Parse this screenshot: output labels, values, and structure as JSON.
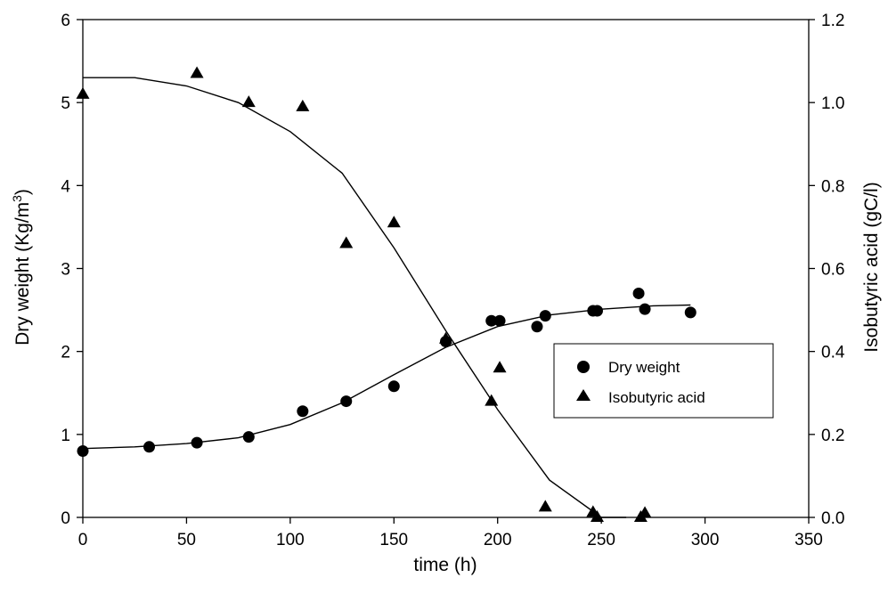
{
  "chart_data": {
    "type": "scatter",
    "title": "",
    "xlabel": "time (h)",
    "ylabel": "Dry weight (Kg/m",
    "ylabel_superscript": "3",
    "ylabel_suffix": ")",
    "y2label": "Isobutyric acid (gC/l)",
    "xlim": [
      0,
      350
    ],
    "ylim": [
      0,
      6
    ],
    "y2lim": [
      0,
      1.2
    ],
    "x_ticks": [
      "0",
      "50",
      "100",
      "150",
      "200",
      "250",
      "300",
      "350"
    ],
    "y_ticks": [
      "0",
      "1",
      "2",
      "3",
      "4",
      "5",
      "6"
    ],
    "y2_ticks": [
      "0.0",
      "0.2",
      "0.4",
      "0.6",
      "0.8",
      "1.0",
      "1.2"
    ],
    "grid": false,
    "legend_position": "center-right",
    "series": [
      {
        "name": "Dry weight",
        "axis": "left",
        "marker": "circle",
        "x": [
          0,
          32,
          55,
          80,
          106,
          127,
          150,
          175,
          197,
          201,
          219,
          223,
          246,
          248,
          268,
          271,
          293
        ],
        "y": [
          0.8,
          0.85,
          0.9,
          0.97,
          1.28,
          1.4,
          1.58,
          2.12,
          2.37,
          2.37,
          2.3,
          2.43,
          2.49,
          2.49,
          2.7,
          2.51,
          2.47
        ]
      },
      {
        "name": "Isobutyric acid",
        "axis": "right",
        "marker": "triangle",
        "x": [
          0,
          55,
          80,
          106,
          127,
          150,
          175,
          197,
          201,
          223,
          246,
          248,
          269,
          271
        ],
        "y": [
          1.02,
          1.07,
          1.0,
          0.99,
          0.66,
          0.71,
          0.43,
          0.28,
          0.36,
          0.025,
          0.012,
          0.0,
          0.0,
          0.01
        ]
      }
    ],
    "fits": [
      {
        "axis": "left",
        "x": [
          0,
          25,
          50,
          75,
          100,
          125,
          150,
          175,
          200,
          225,
          250,
          275,
          293
        ],
        "y": [
          0.83,
          0.85,
          0.89,
          0.96,
          1.12,
          1.38,
          1.72,
          2.05,
          2.3,
          2.44,
          2.51,
          2.55,
          2.56
        ]
      },
      {
        "axis": "right",
        "x": [
          0,
          25,
          50,
          75,
          100,
          125,
          150,
          175,
          200,
          225,
          250,
          262
        ],
        "y": [
          1.06,
          1.06,
          1.04,
          1.0,
          0.93,
          0.83,
          0.65,
          0.45,
          0.26,
          0.09,
          -0.01,
          -0.02
        ]
      }
    ]
  }
}
